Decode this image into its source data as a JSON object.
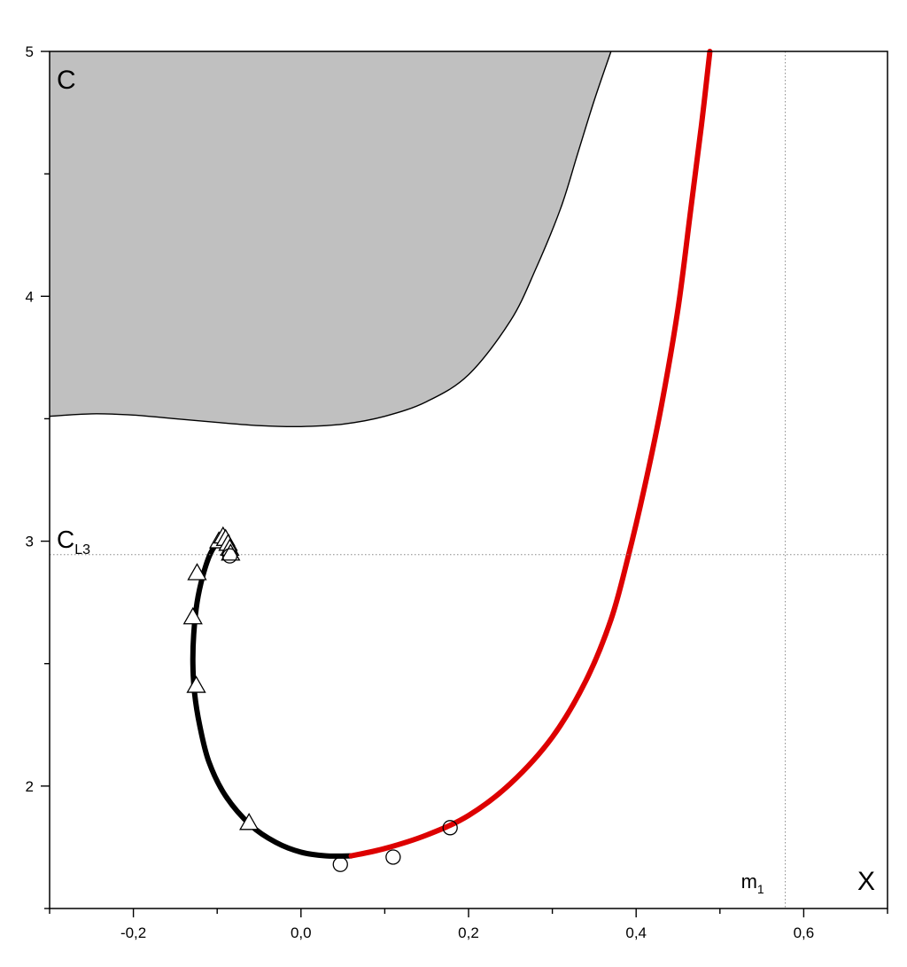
{
  "chart_data": {
    "type": "line",
    "title": "",
    "xlabel": "X",
    "ylabel": "C",
    "xlim": [
      -0.3,
      0.7
    ],
    "ylim": [
      1.5,
      5.0
    ],
    "x_ticks": [
      -0.2,
      0.0,
      0.2,
      0.4,
      0.6
    ],
    "x_tick_labels": [
      "-0,2",
      "0,0",
      "0,2",
      "0,4",
      "0,6"
    ],
    "y_ticks": [
      2,
      3,
      4,
      5
    ],
    "y_tick_labels": [
      "2",
      "3",
      "4",
      "5"
    ],
    "grid": false,
    "reference_lines": {
      "horizontal": {
        "label_main": "C",
        "label_sub": "L3",
        "y": 2.945
      },
      "vertical": {
        "label_main": "m",
        "label_sub": "1",
        "x": 0.578
      }
    },
    "forbidden_region_boundary": {
      "color": "#c0c0c0",
      "x": [
        -0.3,
        -0.25,
        -0.2,
        -0.15,
        -0.1,
        -0.05,
        0.0,
        0.05,
        0.1,
        0.15,
        0.2,
        0.25,
        0.28,
        0.31,
        0.33,
        0.35,
        0.37
      ],
      "y": [
        3.51,
        3.52,
        3.515,
        3.5,
        3.485,
        3.472,
        3.468,
        3.478,
        3.51,
        3.57,
        3.68,
        3.9,
        4.11,
        4.36,
        4.58,
        4.8,
        5.0
      ]
    },
    "series": [
      {
        "color": "#000000",
        "x": [
          -0.088,
          -0.098,
          -0.108,
          -0.117,
          -0.124,
          -0.128,
          -0.129,
          -0.127,
          -0.121,
          -0.11,
          -0.09,
          -0.06,
          -0.03,
          0.0,
          0.03,
          0.06
        ],
        "y": [
          3.02,
          3.0,
          2.95,
          2.86,
          2.75,
          2.62,
          2.5,
          2.38,
          2.25,
          2.1,
          1.96,
          1.84,
          1.77,
          1.73,
          1.715,
          1.715
        ]
      },
      {
        "color": "#dd0000",
        "x": [
          0.06,
          0.1,
          0.15,
          0.2,
          0.25,
          0.3,
          0.34,
          0.37,
          0.39,
          0.41,
          0.43,
          0.45,
          0.465,
          0.478,
          0.488
        ],
        "y": [
          1.715,
          1.745,
          1.8,
          1.88,
          2.01,
          2.2,
          2.43,
          2.68,
          2.93,
          3.22,
          3.55,
          3.95,
          4.35,
          4.7,
          5.0
        ]
      }
    ],
    "triangle_markers": {
      "x": [
        -0.098,
        -0.124,
        -0.129,
        -0.125,
        -0.062,
        -0.093,
        -0.09,
        -0.087,
        -0.085,
        -0.084
      ],
      "y": [
        3.0,
        2.87,
        2.69,
        2.41,
        1.85,
        3.02,
        3.01,
        2.99,
        2.97,
        2.95
      ]
    },
    "circle_markers": {
      "x": [
        -0.085,
        0.047,
        0.11,
        0.178
      ],
      "y": [
        2.94,
        1.68,
        1.71,
        1.83
      ]
    }
  }
}
